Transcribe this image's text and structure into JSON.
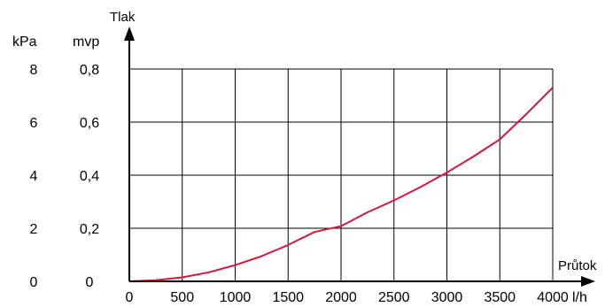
{
  "chart_data": {
    "type": "line",
    "y_axis_title": "Tlak",
    "x_axis_title": "Průtok",
    "x_unit": "l/h",
    "y_units": {
      "kpa": "kPa",
      "mvp": "mvp"
    },
    "x_ticks": [
      "0",
      "500",
      "1000",
      "1500",
      "2000",
      "2500",
      "3000",
      "3500",
      "4000"
    ],
    "y_ticks_kpa": [
      "0",
      "2",
      "4",
      "6",
      "8"
    ],
    "y_ticks_mvp": [
      "0",
      "0,2",
      "0,4",
      "0,6",
      "0,8"
    ],
    "xlim": [
      0,
      4000
    ],
    "ylim": [
      0,
      0.8
    ],
    "grid": true,
    "series": [
      {
        "color": "#d6163c",
        "x": [
          0,
          250,
          500,
          750,
          1000,
          1250,
          1500,
          1750,
          2000,
          2250,
          2500,
          2750,
          3000,
          3250,
          3500,
          3750,
          4000
        ],
        "y": [
          0,
          0.004,
          0.015,
          0.034,
          0.061,
          0.095,
          0.137,
          0.186,
          0.208,
          0.26,
          0.305,
          0.355,
          0.41,
          0.47,
          0.535,
          0.63,
          0.73
        ]
      }
    ]
  }
}
